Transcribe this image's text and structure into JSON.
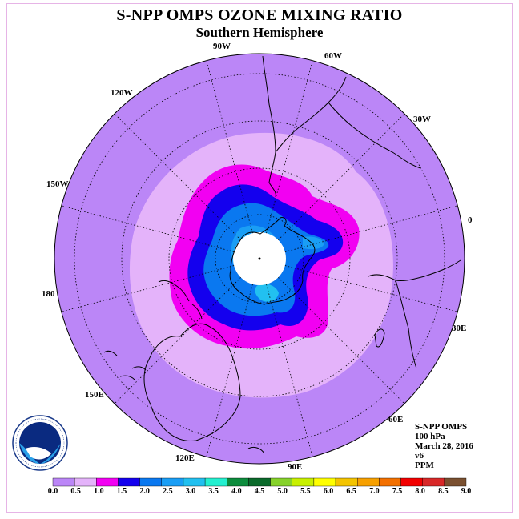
{
  "title": "S-NPP OMPS OZONE MIXING RATIO",
  "subtitle": "Southern Hemisphere",
  "longitude_labels": [
    "90W",
    "60W",
    "120W",
    "30W",
    "150W",
    "0",
    "180",
    "30E",
    "150E",
    "60E",
    "120E",
    "90E"
  ],
  "info": {
    "instrument": "S-NPP OMPS",
    "level": "100 hPa",
    "date": "March 28, 2016",
    "version": "v6",
    "units": "PPM"
  },
  "logo": {
    "text": "NOAA",
    "ring_text": "NATIONAL OCEANIC AND ATMOSPHERIC ADMINISTRATION · U.S. DEPARTMENT OF COMMERCE"
  },
  "colorbar": {
    "ticks": [
      "0.0",
      "0.5",
      "1.0",
      "1.5",
      "2.0",
      "2.5",
      "3.0",
      "3.5",
      "4.0",
      "4.5",
      "5.0",
      "5.5",
      "6.0",
      "6.5",
      "7.0",
      "7.5",
      "8.0",
      "8.5",
      "9.0"
    ],
    "colors": [
      "#bb86f7",
      "#e4b3fa",
      "#f200f2",
      "#1400ee",
      "#0a78f0",
      "#1a9ef5",
      "#22c0f0",
      "#24f0d0",
      "#0c8c3c",
      "#0a6a2a",
      "#86d22a",
      "#c8f000",
      "#ffff00",
      "#f4c400",
      "#f7a000",
      "#f37000",
      "#f20000",
      "#d82828",
      "#7a5030"
    ]
  },
  "colors": {
    "level_0_0": "#bb86f7",
    "level_0_5": "#e4b3fa",
    "level_1_0": "#f200f2",
    "level_1_5": "#1400ee",
    "level_2_0": "#0a78f0",
    "level_2_5": "#1a9ef5",
    "level_3_0": "#22c0f0",
    "no_data": "#ffffff",
    "frame": "#e6b4e6"
  }
}
